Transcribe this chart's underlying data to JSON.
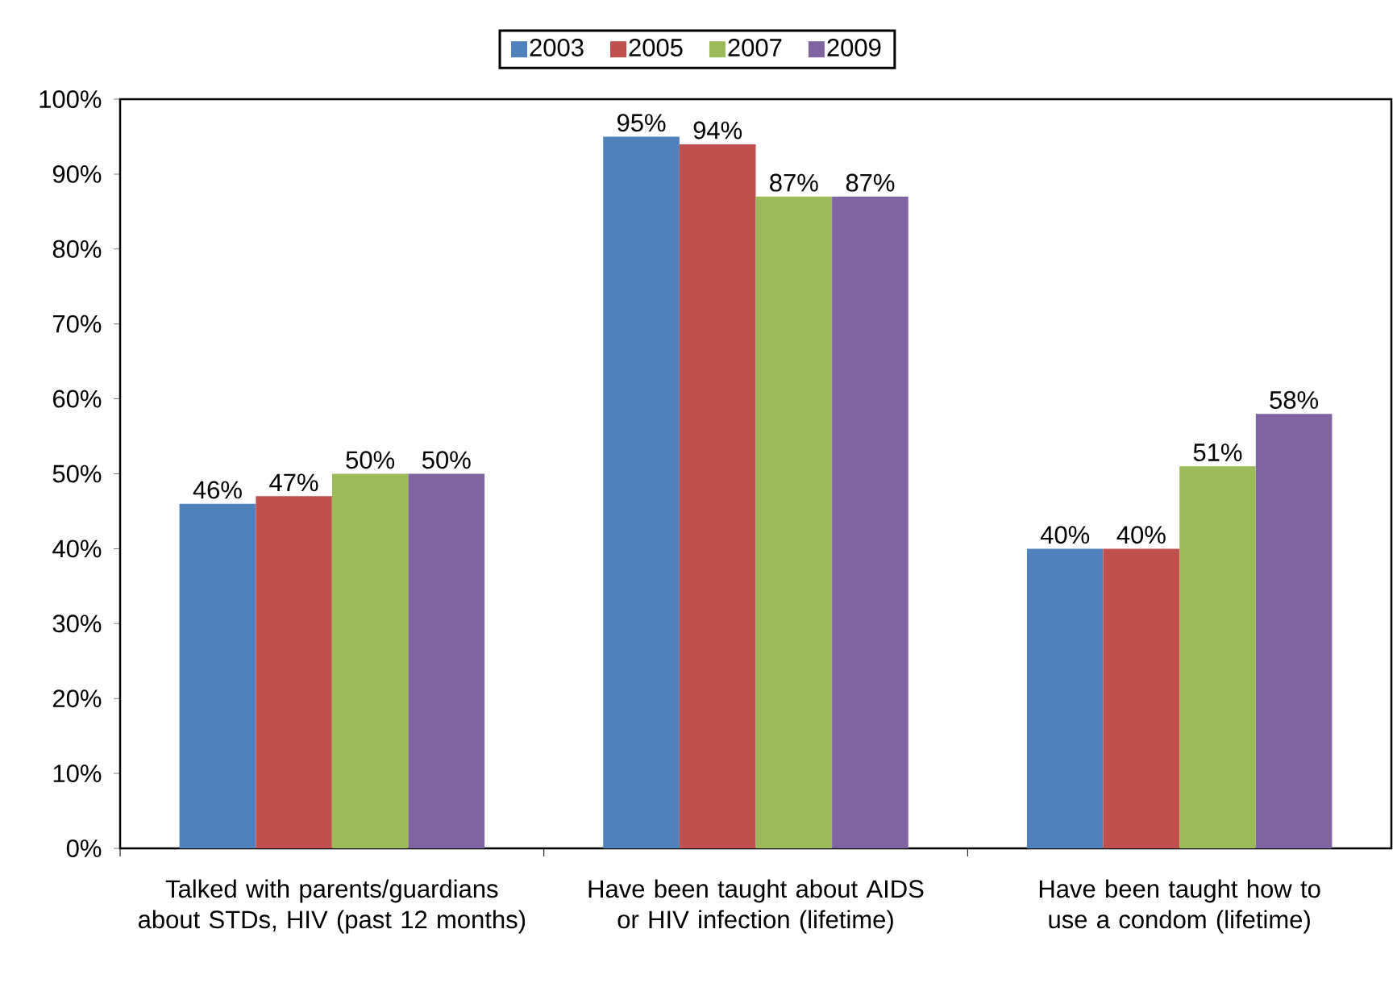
{
  "chart_data": {
    "type": "bar",
    "categories": [
      "Talked with parents/guardians about STDs, HIV (past 12 months)",
      "Have been taught about AIDS or HIV infection (lifetime)",
      "Have been taught how to use a condom (lifetime)"
    ],
    "series": [
      {
        "name": "2003",
        "color": "#4f81bd",
        "values": [
          46,
          95,
          40
        ],
        "value_labels": [
          "46%",
          "95%",
          "40%"
        ]
      },
      {
        "name": "2005",
        "color": "#c0504d",
        "values": [
          47,
          94,
          40
        ],
        "value_labels": [
          "47%",
          "94%",
          "40%"
        ]
      },
      {
        "name": "2007",
        "color": "#9bbb59",
        "values": [
          50,
          87,
          51
        ],
        "value_labels": [
          "50%",
          "87%",
          "51%"
        ]
      },
      {
        "name": "2009",
        "color": "#8064a2",
        "values": [
          50,
          87,
          58
        ],
        "value_labels": [
          "50%",
          "87%",
          "58%"
        ]
      }
    ],
    "ylim": [
      0,
      100
    ],
    "yticks": [
      {
        "value": 0,
        "label": "0%"
      },
      {
        "value": 10,
        "label": "10%"
      },
      {
        "value": 20,
        "label": "20%"
      },
      {
        "value": 30,
        "label": "30%"
      },
      {
        "value": 40,
        "label": "40%"
      },
      {
        "value": 50,
        "label": "50%"
      },
      {
        "value": 60,
        "label": "60%"
      },
      {
        "value": 70,
        "label": "70%"
      },
      {
        "value": 80,
        "label": "80%"
      },
      {
        "value": 90,
        "label": "90%"
      },
      {
        "value": 100,
        "label": "100%"
      }
    ],
    "grid": false,
    "legend": "top"
  }
}
